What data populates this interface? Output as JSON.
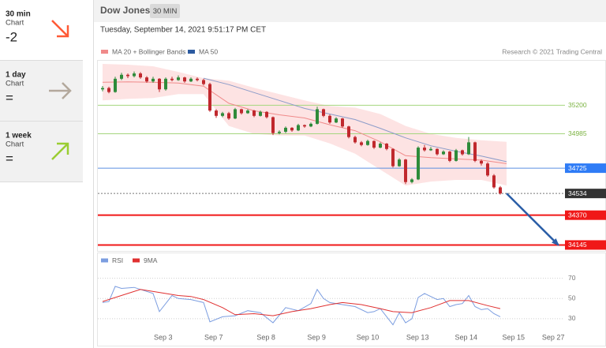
{
  "sidebar": [
    {
      "period": "30 min",
      "label": "Chart",
      "signal": "-2",
      "direction": "down",
      "color": "#ff5a36",
      "background": "#ffffff"
    },
    {
      "period": "1 day",
      "label": "Chart",
      "signal": "=",
      "direction": "right",
      "color": "#b3a89c",
      "background": "#f1f1f1"
    },
    {
      "period": "1 week",
      "label": "Chart",
      "signal": "=",
      "direction": "up",
      "color": "#9acd32",
      "background": "#f1f1f1"
    }
  ],
  "chart_data": {
    "type": "candlestick",
    "title": "Dow Jones",
    "interval": "30 MIN",
    "subtitle": "Tuesday, September 14, 2021 9:51:17 PM CET",
    "source": "Research © 2021 Trading Central",
    "xlim": [
      -1.5,
      73.5
    ],
    "xticks": [
      {
        "value": 9.6,
        "label": "Sep 3"
      },
      {
        "value": 17.6,
        "label": "Sep 7"
      },
      {
        "value": 25.9,
        "label": "Sep 8"
      },
      {
        "value": 33.9,
        "label": "Sep 9"
      },
      {
        "value": 42,
        "label": "Sep 10"
      },
      {
        "value": 49.9,
        "label": "Sep 13"
      },
      {
        "value": 57.6,
        "label": "Sep 14"
      },
      {
        "value": 65.1,
        "label": "Sep 15"
      },
      {
        "value": 71.4,
        "label": "Sep 27"
      }
    ],
    "ylim": [
      34100,
      35530
    ],
    "candles": {
      "up_color": "#2e8b3a",
      "down_color": "#c0282d",
      "ohlc": [
        [
          35320,
          35345,
          35305,
          35330
        ],
        [
          35330,
          35340,
          35290,
          35300
        ],
        [
          35300,
          35415,
          35295,
          35400
        ],
        [
          35400,
          35445,
          35390,
          35430
        ],
        [
          35430,
          35440,
          35405,
          35420
        ],
        [
          35420,
          35455,
          35410,
          35440
        ],
        [
          35440,
          35450,
          35400,
          35410
        ],
        [
          35410,
          35420,
          35370,
          35380
        ],
        [
          35380,
          35415,
          35370,
          35400
        ],
        [
          35400,
          35405,
          35300,
          35320
        ],
        [
          35320,
          35410,
          35310,
          35400
        ],
        [
          35400,
          35415,
          35380,
          35390
        ],
        [
          35390,
          35425,
          35385,
          35410
        ],
        [
          35410,
          35415,
          35370,
          35380
        ],
        [
          35380,
          35410,
          35375,
          35400
        ],
        [
          35400,
          35410,
          35380,
          35390
        ],
        [
          35390,
          35400,
          35350,
          35360
        ],
        [
          35360,
          35370,
          35150,
          35160
        ],
        [
          35160,
          35170,
          35105,
          35120
        ],
        [
          35120,
          35150,
          35110,
          35140
        ],
        [
          35140,
          35150,
          35090,
          35100
        ],
        [
          35100,
          35180,
          35095,
          35170
        ],
        [
          35170,
          35175,
          35130,
          35140
        ],
        [
          35140,
          35170,
          35135,
          35160
        ],
        [
          35160,
          35165,
          35110,
          35120
        ],
        [
          35120,
          35160,
          35115,
          35150
        ],
        [
          35150,
          35155,
          35100,
          35110
        ],
        [
          35110,
          35115,
          34975,
          34990
        ],
        [
          34990,
          35010,
          34980,
          35000
        ],
        [
          35000,
          35040,
          34990,
          35030
        ],
        [
          35030,
          35035,
          35000,
          35010
        ],
        [
          35010,
          35060,
          35005,
          35050
        ],
        [
          35050,
          35055,
          35030,
          35040
        ],
        [
          35040,
          35070,
          35035,
          35060
        ],
        [
          35060,
          35190,
          35055,
          35170
        ],
        [
          35170,
          35175,
          35110,
          35120
        ],
        [
          35120,
          35130,
          35060,
          35070
        ],
        [
          35070,
          35110,
          35065,
          35100
        ],
        [
          35100,
          35105,
          35030,
          35040
        ],
        [
          35040,
          35045,
          34950,
          34960
        ],
        [
          34960,
          34970,
          34910,
          34920
        ],
        [
          34920,
          34930,
          34890,
          34900
        ],
        [
          34900,
          34940,
          34895,
          34930
        ],
        [
          34930,
          34935,
          34870,
          34880
        ],
        [
          34880,
          34920,
          34875,
          34910
        ],
        [
          34910,
          34915,
          34860,
          34870
        ],
        [
          34870,
          34875,
          34730,
          34740
        ],
        [
          34740,
          34800,
          34735,
          34790
        ],
        [
          34790,
          34795,
          34605,
          34620
        ],
        [
          34620,
          34650,
          34610,
          34640
        ],
        [
          34640,
          34890,
          34635,
          34880
        ],
        [
          34880,
          34900,
          34850,
          34860
        ],
        [
          34860,
          34885,
          34855,
          34870
        ],
        [
          34870,
          34875,
          34820,
          34830
        ],
        [
          34830,
          34860,
          34825,
          34850
        ],
        [
          34850,
          34855,
          34770,
          34780
        ],
        [
          34780,
          34870,
          34775,
          34860
        ],
        [
          34860,
          34865,
          34820,
          34830
        ],
        [
          34830,
          34960,
          34825,
          34920
        ],
        [
          34920,
          34925,
          34770,
          34780
        ],
        [
          34780,
          34790,
          34745,
          34760
        ],
        [
          34760,
          34770,
          34660,
          34670
        ],
        [
          34670,
          34680,
          34570,
          34580
        ],
        [
          34580,
          34590,
          34525,
          34534
        ]
      ]
    },
    "series": [
      {
        "name": "MA 20 + Bollinger Bands",
        "color": "#f08a8a",
        "band_color": "#fde3e3",
        "x": [
          0,
          4,
          8,
          12,
          16,
          20,
          24,
          28,
          32,
          36,
          40,
          44,
          48,
          52,
          56,
          60,
          64
        ],
        "values": [
          35374,
          35377,
          35374,
          35368,
          35344,
          35215,
          35158,
          35128,
          35104,
          35053,
          35008,
          34924,
          34819,
          34804,
          34795,
          34786,
          34759
        ],
        "upper": [
          35512,
          35506,
          35494,
          35452,
          35404,
          35386,
          35332,
          35284,
          35236,
          35194,
          35182,
          35134,
          35044,
          34984,
          34954,
          34936,
          34924
        ],
        "lower": [
          35236,
          35248,
          35254,
          35284,
          35284,
          35044,
          34984,
          34972,
          34972,
          34912,
          34834,
          34714,
          34594,
          34624,
          34636,
          34636,
          34594
        ]
      },
      {
        "name": "MA 50",
        "color": "#8c9cc9",
        "legend_color": "#2c5aa0",
        "x": [
          16,
          20,
          24,
          28,
          32,
          36,
          40,
          44,
          48,
          52,
          56,
          60,
          64
        ],
        "values": [
          35404,
          35356,
          35296,
          35236,
          35176,
          35134,
          35092,
          35026,
          34954,
          34894,
          34852,
          34816,
          34774
        ]
      }
    ],
    "levels": [
      {
        "value": 35200,
        "color": "#a5d67e",
        "text_color": "#7cb342",
        "style": "text",
        "dashed": false,
        "width": 1
      },
      {
        "value": 34985,
        "color": "#a5d67e",
        "text_color": "#7cb342",
        "style": "text",
        "dashed": false,
        "width": 1
      },
      {
        "value": 34725,
        "color": "#5b8fe0",
        "text_color": "#ffffff",
        "box_color": "#2f7cf6",
        "style": "box",
        "dashed": false,
        "width": 1
      },
      {
        "value": 34534,
        "color": "#777777",
        "text_color": "#ffffff",
        "box_color": "#333333",
        "style": "box",
        "dashed": true,
        "width": 1
      },
      {
        "value": 34370,
        "color": "#f01818",
        "text_color": "#ffffff",
        "box_color": "#f01818",
        "style": "box",
        "dashed": false,
        "width": 2
      },
      {
        "value": 34145,
        "color": "#f01818",
        "text_color": "#ffffff",
        "box_color": "#f01818",
        "style": "box",
        "dashed": false,
        "width": 2
      }
    ],
    "forecast": {
      "x": [
        64,
        72.2
      ],
      "values": [
        34534,
        34145
      ],
      "color": "#2b5ea7"
    },
    "indicator": {
      "ylim": [
        19,
        76
      ],
      "yticks": [
        30,
        50,
        70
      ],
      "series": [
        {
          "name": "RSI",
          "color": "#7b9de0",
          "x": [
            0,
            1,
            2,
            3,
            5,
            7,
            8,
            9,
            11,
            12,
            14,
            16,
            17,
            19,
            21,
            23,
            25,
            27,
            29,
            31,
            33,
            34,
            35,
            36,
            38,
            40,
            42,
            43,
            44,
            46,
            47,
            48,
            49,
            50,
            51,
            53,
            54,
            55,
            56,
            57,
            58,
            59,
            60,
            61,
            62,
            63
          ],
          "values": [
            46,
            47,
            62,
            60,
            61,
            57,
            55,
            37,
            53,
            50,
            49,
            46,
            27,
            32,
            33,
            38,
            36,
            26,
            41,
            38,
            45,
            59,
            50,
            46,
            44,
            42,
            36,
            37,
            40,
            24,
            36,
            26,
            30,
            51,
            55,
            49,
            50,
            42,
            44,
            45,
            53,
            42,
            39,
            40,
            35,
            32
          ]
        },
        {
          "name": "9MA",
          "color": "#e03030",
          "x": [
            0,
            4,
            6,
            9,
            12,
            14,
            16,
            19,
            21,
            24,
            27,
            30,
            33,
            36,
            38,
            41,
            44,
            46,
            49,
            52,
            55,
            58,
            61,
            63
          ],
          "values": [
            47,
            55,
            59,
            56,
            53,
            52,
            49,
            41,
            34,
            35,
            33,
            37,
            40,
            44,
            46,
            44,
            40,
            37,
            36,
            41,
            48,
            48,
            43,
            40
          ]
        }
      ]
    }
  }
}
